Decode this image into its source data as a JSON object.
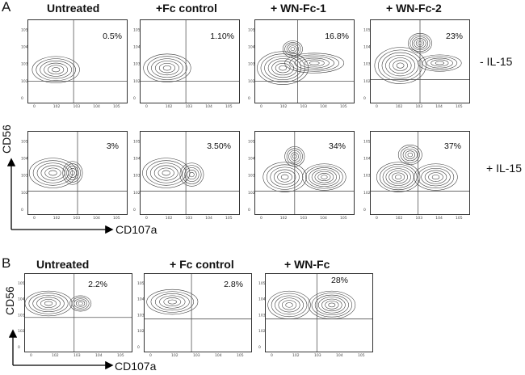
{
  "panelA": {
    "letter": "A",
    "columns": [
      "Untreated",
      "+Fc control",
      "+ WN-Fc-1",
      "+ WN-Fc-2"
    ],
    "rows": [
      {
        "label": "- IL-15",
        "percentages": [
          "0.5%",
          "1.10%",
          "16.8%",
          "23%"
        ]
      },
      {
        "label": "+ IL-15",
        "percentages": [
          "3%",
          "3.50%",
          "34%",
          "37%"
        ]
      }
    ],
    "y_axis_label": "CD56",
    "x_axis_label": "CD107a"
  },
  "panelB": {
    "letter": "B",
    "columns": [
      "Untreated",
      "+ Fc control",
      "+ WN-Fc"
    ],
    "percentages": [
      "2.2%",
      "2.8%",
      "28%"
    ],
    "y_axis_label": "CD56",
    "x_axis_label": "CD107a"
  },
  "chart_data": {
    "type": "contour",
    "x_variable": "CD107a",
    "y_variable": "CD56",
    "x_scale": "log",
    "y_scale": "log",
    "x_ticks": [
      "0",
      "10^2",
      "10^3",
      "10^4",
      "10^5"
    ],
    "y_ticks": [
      "0",
      "10^2",
      "10^3",
      "10^4",
      "10^5"
    ],
    "quantity": "percent CD107a+ CD56+ cells (upper-right quadrant)",
    "panels": [
      {
        "panel": "A",
        "condition": "- IL-15",
        "treatment": "Untreated",
        "value": 0.5
      },
      {
        "panel": "A",
        "condition": "- IL-15",
        "treatment": "+Fc control",
        "value": 1.1
      },
      {
        "panel": "A",
        "condition": "- IL-15",
        "treatment": "+ WN-Fc-1",
        "value": 16.8
      },
      {
        "panel": "A",
        "condition": "- IL-15",
        "treatment": "+ WN-Fc-2",
        "value": 23
      },
      {
        "panel": "A",
        "condition": "+ IL-15",
        "treatment": "Untreated",
        "value": 3
      },
      {
        "panel": "A",
        "condition": "+ IL-15",
        "treatment": "+Fc control",
        "value": 3.5
      },
      {
        "panel": "A",
        "condition": "+ IL-15",
        "treatment": "+ WN-Fc-1",
        "value": 34
      },
      {
        "panel": "A",
        "condition": "+ IL-15",
        "treatment": "+ WN-Fc-2",
        "value": 37
      },
      {
        "panel": "B",
        "condition": "",
        "treatment": "Untreated",
        "value": 2.2
      },
      {
        "panel": "B",
        "condition": "",
        "treatment": "+ Fc control",
        "value": 2.8
      },
      {
        "panel": "B",
        "condition": "",
        "treatment": "+ WN-Fc",
        "value": 28
      }
    ]
  }
}
